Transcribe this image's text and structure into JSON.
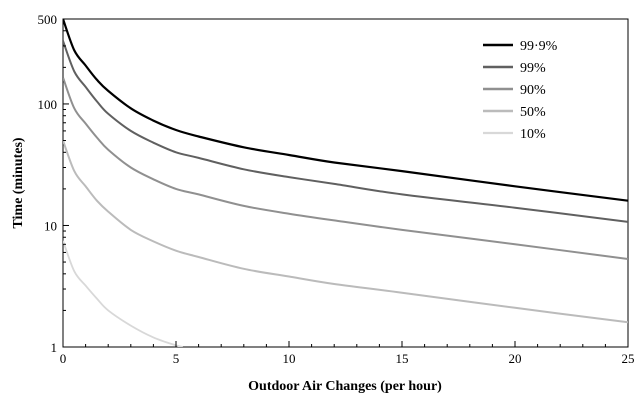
{
  "chart_data": {
    "type": "line",
    "title": "",
    "xlabel": "Outdoor Air Changes (per hour)",
    "ylabel": "Time (minutes)",
    "xlim": [
      0,
      25
    ],
    "ylim": [
      1,
      500
    ],
    "y_scale": "log",
    "x_ticks": [
      0,
      5,
      10,
      15,
      20,
      25
    ],
    "x_tick_labels": [
      "0",
      "5",
      "10",
      "15",
      "20",
      "25"
    ],
    "y_ticks": [
      1,
      10,
      100,
      500
    ],
    "y_tick_labels": [
      "1",
      "10",
      "100",
      "500"
    ],
    "grid": false,
    "legend_position": "top-right",
    "series": [
      {
        "name": "99·9%",
        "color": "#000000",
        "points": [
          [
            0,
            500
          ],
          [
            0.5,
            276
          ],
          [
            1,
            207
          ],
          [
            1.5,
            158
          ],
          [
            2,
            128
          ],
          [
            3,
            92
          ],
          [
            4,
            73
          ],
          [
            5,
            61
          ],
          [
            6,
            54
          ],
          [
            8,
            44
          ],
          [
            10,
            38
          ],
          [
            12,
            33
          ],
          [
            15,
            28
          ],
          [
            20,
            21
          ],
          [
            25,
            16
          ]
        ]
      },
      {
        "name": "99%",
        "color": "#606060",
        "points": [
          [
            0,
            330
          ],
          [
            0.5,
            185
          ],
          [
            1,
            138
          ],
          [
            1.5,
            105
          ],
          [
            2,
            83
          ],
          [
            3,
            60
          ],
          [
            4,
            48
          ],
          [
            5,
            40
          ],
          [
            6,
            36
          ],
          [
            8,
            29
          ],
          [
            10,
            25
          ],
          [
            12,
            22
          ],
          [
            15,
            18
          ],
          [
            20,
            14
          ],
          [
            25,
            10.7
          ]
        ]
      },
      {
        "name": "90%",
        "color": "#909090",
        "points": [
          [
            0,
            165
          ],
          [
            0.5,
            92
          ],
          [
            1,
            69
          ],
          [
            1.5,
            53
          ],
          [
            2,
            42
          ],
          [
            3,
            30
          ],
          [
            4,
            24
          ],
          [
            5,
            20
          ],
          [
            6,
            18
          ],
          [
            8,
            14.5
          ],
          [
            10,
            12.5
          ],
          [
            12,
            11
          ],
          [
            15,
            9.2
          ],
          [
            20,
            7
          ],
          [
            25,
            5.3
          ]
        ]
      },
      {
        "name": "50%",
        "color": "#bbbbbb",
        "points": [
          [
            0,
            50
          ],
          [
            0.5,
            28
          ],
          [
            1,
            21
          ],
          [
            1.5,
            16
          ],
          [
            2,
            13
          ],
          [
            3,
            9.2
          ],
          [
            4,
            7.4
          ],
          [
            5,
            6.2
          ],
          [
            6,
            5.5
          ],
          [
            8,
            4.4
          ],
          [
            10,
            3.8
          ],
          [
            12,
            3.3
          ],
          [
            15,
            2.8
          ],
          [
            20,
            2.1
          ],
          [
            25,
            1.6
          ]
        ]
      },
      {
        "name": "10%",
        "color": "#d8d8d8",
        "points": [
          [
            0,
            7.5
          ],
          [
            0.5,
            4.2
          ],
          [
            1,
            3.2
          ],
          [
            1.5,
            2.5
          ],
          [
            2,
            2.0
          ],
          [
            3,
            1.5
          ],
          [
            4,
            1.2
          ],
          [
            5,
            1.03
          ],
          [
            5.3,
            1.0
          ]
        ]
      }
    ]
  }
}
